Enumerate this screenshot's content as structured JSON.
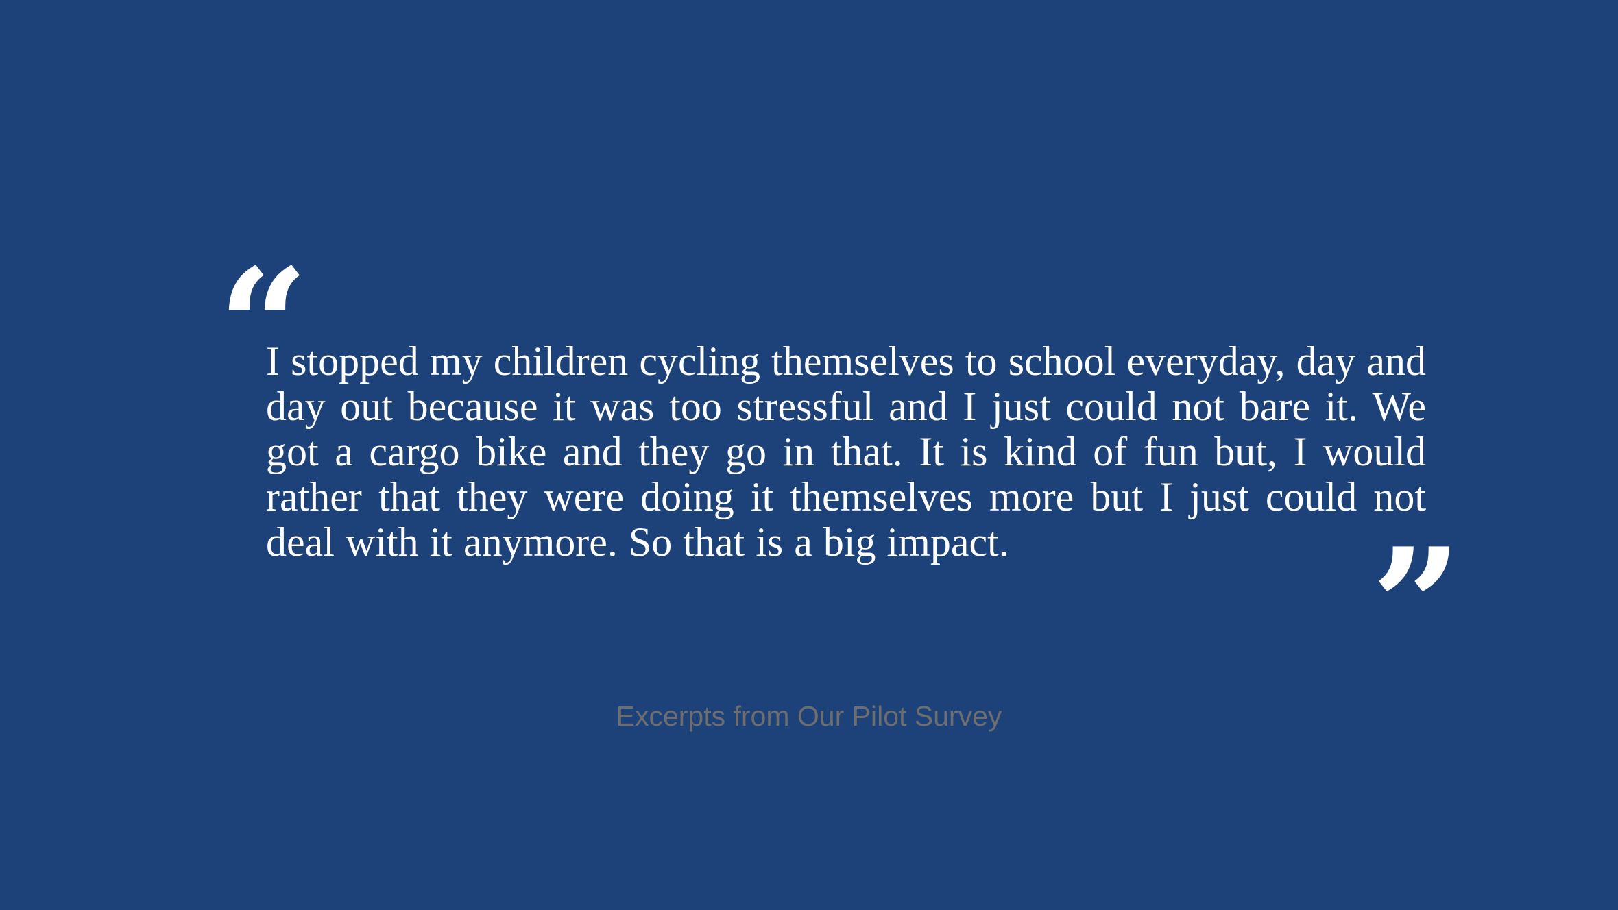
{
  "slide": {
    "background_color": "#1d427a",
    "quote": {
      "open_mark": "“",
      "close_mark": "”",
      "text": "I stopped my children cycling themselves to school everyday, day and day out because it was too stressful and I just could not bare it.  We got a cargo bike and they go in that.  It is kind of fun but, I would rather that they were doing it themselves more but I just could not deal with it anymore.  So that is a big impact.",
      "text_color": "#ffffff"
    },
    "caption": {
      "text": "Excerpts from Our Pilot Survey",
      "color": "#6e6e6e"
    }
  }
}
